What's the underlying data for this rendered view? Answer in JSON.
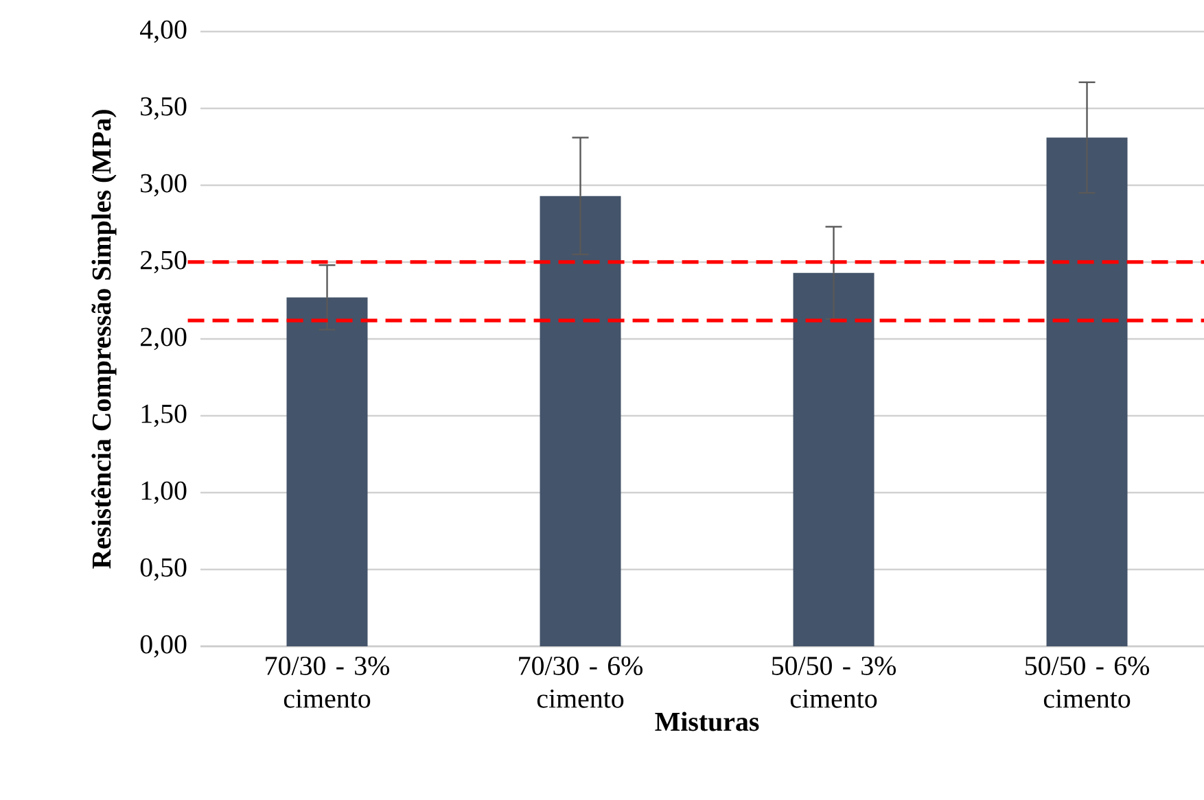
{
  "chart_data": {
    "type": "bar",
    "xlabel": "Misturas",
    "ylabel": "Resistência Compressão Simples  (MPa)",
    "categories": [
      "70/30 - 3% cimento",
      "70/30 - 6% cimento",
      "50/50 - 3% cimento",
      "50/50 - 6% cimento"
    ],
    "values": [
      2.27,
      2.93,
      2.43,
      3.31
    ],
    "errors": [
      0.21,
      0.38,
      0.3,
      0.36
    ],
    "color": "#44546a",
    "ylim": [
      0,
      4
    ],
    "yticks": [
      {
        "value": 0,
        "label": "0,00"
      },
      {
        "value": 0.5,
        "label": "0,50"
      },
      {
        "value": 1,
        "label": "1,00"
      },
      {
        "value": 1.5,
        "label": "1,50"
      },
      {
        "value": 2,
        "label": "2,00"
      },
      {
        "value": 2.5,
        "label": "2,50"
      },
      {
        "value": 3,
        "label": "3,00"
      },
      {
        "value": 3.5,
        "label": "3,50"
      },
      {
        "value": 4,
        "label": "4,00"
      }
    ],
    "grid": "y",
    "ref_lines": [
      {
        "axis": "y",
        "value": 2.5,
        "color": "#ff0000",
        "line_style": "dashed"
      },
      {
        "axis": "y",
        "value": 2.12,
        "color": "#ff0000",
        "line_style": "dashed"
      }
    ]
  }
}
